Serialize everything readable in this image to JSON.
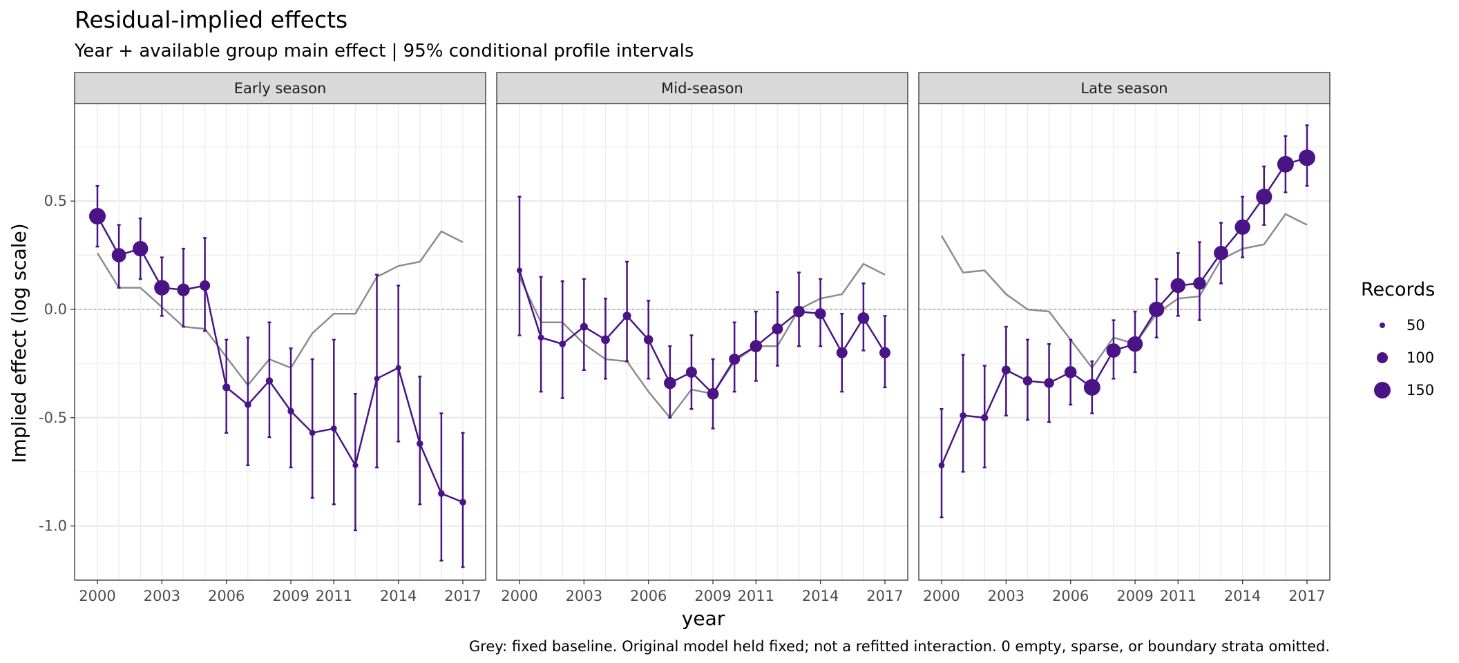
{
  "chart_data": {
    "type": "line",
    "title": "Residual-implied effects",
    "subtitle": "Year + available group main effect | 95% conditional profile intervals",
    "xlabel": "year",
    "ylabel": "Implied effect (log scale)",
    "caption": "Grey: fixed baseline. Original model held fixed; not a refitted interaction. 0 empty, sparse, or boundary strata omitted.",
    "xlim": [
      2000,
      2017
    ],
    "ylim": [
      -1.25,
      0.95
    ],
    "x_ticks": [
      2000,
      2003,
      2006,
      2009,
      2011,
      2014,
      2017
    ],
    "x_tick_labels": [
      "2000",
      "2003",
      "2006",
      "2009",
      "2011",
      "2014",
      "2017"
    ],
    "y_ticks": [
      -1.0,
      -0.5,
      0.0,
      0.5
    ],
    "y_tick_labels": [
      "-1.0",
      "-0.5",
      "0.0",
      "0.5"
    ],
    "reference_line": 0,
    "colors": {
      "estimate": "#4a1486",
      "baseline": "#8c8c8c",
      "reference": "#bbbbbb",
      "strip": "#d9d9d9"
    },
    "legend": {
      "title": "Records",
      "placement": "right",
      "entries": [
        {
          "label": "50",
          "value": 50
        },
        {
          "label": "100",
          "value": 100
        },
        {
          "label": "150",
          "value": 150
        }
      ]
    },
    "x": [
      2000,
      2001,
      2002,
      2003,
      2004,
      2005,
      2006,
      2007,
      2008,
      2009,
      2010,
      2011,
      2012,
      2013,
      2014,
      2015,
      2016,
      2017
    ],
    "panels": [
      {
        "name": "Early season",
        "estimate": [
          0.43,
          0.25,
          0.28,
          0.1,
          0.09,
          0.11,
          -0.36,
          -0.44,
          -0.33,
          -0.47,
          -0.57,
          -0.55,
          -0.72,
          -0.32,
          -0.27,
          -0.62,
          -0.85,
          -0.89
        ],
        "lower": [
          0.29,
          0.1,
          0.14,
          -0.03,
          -0.08,
          -0.1,
          -0.57,
          -0.72,
          -0.59,
          -0.73,
          -0.87,
          -0.9,
          -1.02,
          -0.73,
          -0.61,
          -0.9,
          -1.16,
          -1.19
        ],
        "upper": [
          0.57,
          0.39,
          0.42,
          0.24,
          0.28,
          0.33,
          -0.14,
          -0.13,
          -0.06,
          -0.18,
          -0.23,
          -0.14,
          -0.39,
          0.16,
          0.11,
          -0.31,
          -0.48,
          -0.57
        ],
        "records": [
          150,
          130,
          140,
          140,
          115,
          95,
          70,
          60,
          65,
          60,
          55,
          55,
          50,
          50,
          50,
          60,
          60,
          60
        ],
        "baseline": [
          0.26,
          0.1,
          0.1,
          0.01,
          -0.08,
          -0.09,
          -0.22,
          -0.35,
          -0.23,
          -0.27,
          -0.11,
          -0.02,
          -0.02,
          0.15,
          0.2,
          0.22,
          0.36,
          0.31
        ]
      },
      {
        "name": "Mid-season",
        "estimate": [
          0.18,
          -0.13,
          -0.16,
          -0.08,
          -0.14,
          -0.03,
          -0.14,
          -0.34,
          -0.29,
          -0.39,
          -0.23,
          -0.17,
          -0.09,
          -0.01,
          -0.02,
          -0.2,
          -0.04,
          -0.2
        ],
        "lower": [
          -0.12,
          -0.38,
          -0.41,
          -0.28,
          -0.32,
          -0.24,
          -0.32,
          -0.5,
          -0.46,
          -0.55,
          -0.38,
          -0.33,
          -0.26,
          -0.17,
          -0.17,
          -0.38,
          -0.19,
          -0.36
        ],
        "upper": [
          0.52,
          0.15,
          0.13,
          0.14,
          0.05,
          0.22,
          0.04,
          -0.17,
          -0.12,
          -0.23,
          -0.06,
          -0.01,
          0.08,
          0.17,
          0.14,
          -0.02,
          0.12,
          -0.03
        ],
        "records": [
          50,
          55,
          60,
          70,
          80,
          75,
          85,
          110,
          100,
          105,
          100,
          110,
          100,
          105,
          100,
          100,
          105,
          100
        ],
        "baseline": [
          0.15,
          -0.06,
          -0.06,
          -0.16,
          -0.23,
          -0.24,
          -0.38,
          -0.5,
          -0.37,
          -0.39,
          -0.24,
          -0.17,
          -0.17,
          0.0,
          0.05,
          0.07,
          0.21,
          0.16
        ]
      },
      {
        "name": "Late season",
        "estimate": [
          -0.72,
          -0.49,
          -0.5,
          -0.28,
          -0.33,
          -0.34,
          -0.29,
          -0.36,
          -0.19,
          -0.16,
          0.0,
          0.11,
          0.12,
          0.26,
          0.38,
          0.52,
          0.67,
          0.7
        ],
        "lower": [
          -0.96,
          -0.75,
          -0.73,
          -0.49,
          -0.51,
          -0.52,
          -0.44,
          -0.48,
          -0.32,
          -0.29,
          -0.13,
          -0.03,
          -0.05,
          0.12,
          0.24,
          0.39,
          0.54,
          0.57
        ],
        "upper": [
          -0.46,
          -0.21,
          -0.26,
          -0.08,
          -0.14,
          -0.16,
          -0.14,
          -0.24,
          -0.05,
          -0.01,
          0.14,
          0.26,
          0.31,
          0.4,
          0.52,
          0.66,
          0.8,
          0.85
        ],
        "records": [
          55,
          60,
          65,
          80,
          85,
          90,
          110,
          150,
          130,
          140,
          140,
          135,
          115,
          130,
          140,
          145,
          150,
          150
        ],
        "baseline": [
          0.34,
          0.17,
          0.18,
          0.07,
          0.0,
          -0.01,
          -0.14,
          -0.27,
          -0.13,
          -0.16,
          -0.02,
          0.05,
          0.06,
          0.23,
          0.28,
          0.3,
          0.44,
          0.39
        ]
      }
    ]
  }
}
